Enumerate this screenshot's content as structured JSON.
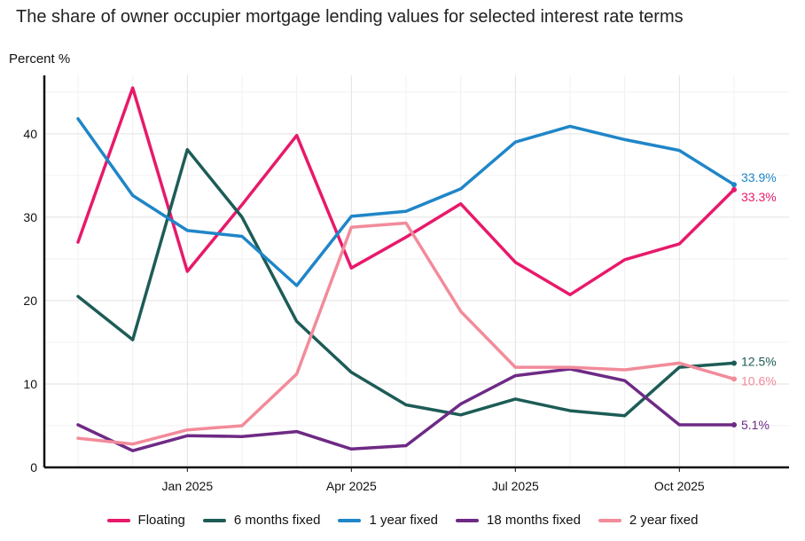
{
  "chart_data": {
    "type": "line",
    "title": "The share of owner occupier mortgage lending values for selected interest rate terms",
    "ylabel": "Percent %",
    "xlabel": "",
    "x": [
      "2024-11",
      "2024-12",
      "2025-01",
      "2025-02",
      "2025-03",
      "2025-04",
      "2025-05",
      "2025-06",
      "2025-07",
      "2025-08",
      "2025-09",
      "2025-10",
      "2025-11"
    ],
    "x_ticks": [
      {
        "date": "2025-01",
        "label": "Jan 2025"
      },
      {
        "date": "2025-04",
        "label": "Apr 2025"
      },
      {
        "date": "2025-07",
        "label": "Jul 2025"
      },
      {
        "date": "2025-10",
        "label": "Oct 2025"
      }
    ],
    "y_ticks": [
      0,
      10,
      20,
      30,
      40
    ],
    "ylim": [
      0,
      47
    ],
    "grid": true,
    "legend_position": "bottom",
    "series": [
      {
        "name": "Floating",
        "color": "#e8196a",
        "values": [
          27.0,
          45.5,
          23.5,
          31.5,
          39.8,
          23.9,
          27.6,
          31.6,
          24.6,
          20.7,
          24.9,
          26.8,
          33.3
        ],
        "end_label": "33.3%"
      },
      {
        "name": "6 months fixed",
        "color": "#1d5c56",
        "values": [
          20.5,
          15.3,
          38.1,
          30.0,
          17.5,
          11.4,
          7.5,
          6.3,
          8.2,
          6.8,
          6.2,
          12.0,
          12.5
        ],
        "end_label": "12.5%"
      },
      {
        "name": "1 year fixed",
        "color": "#1f86c8",
        "values": [
          41.8,
          32.6,
          28.4,
          27.7,
          21.8,
          30.1,
          30.7,
          33.4,
          39.0,
          40.9,
          39.3,
          38.0,
          33.9
        ],
        "end_label": "33.9%"
      },
      {
        "name": "18 months fixed",
        "color": "#6e2a85",
        "values": [
          5.1,
          2.0,
          3.8,
          3.7,
          4.3,
          2.2,
          2.6,
          7.6,
          11.0,
          11.8,
          10.4,
          5.1,
          5.1
        ],
        "end_label": "5.1%"
      },
      {
        "name": "2 year fixed",
        "color": "#f28b9a",
        "values": [
          3.5,
          2.8,
          4.5,
          5.0,
          11.2,
          28.8,
          29.3,
          18.7,
          12.0,
          12.0,
          11.7,
          12.5,
          10.6
        ],
        "end_label": "10.6%"
      }
    ]
  }
}
